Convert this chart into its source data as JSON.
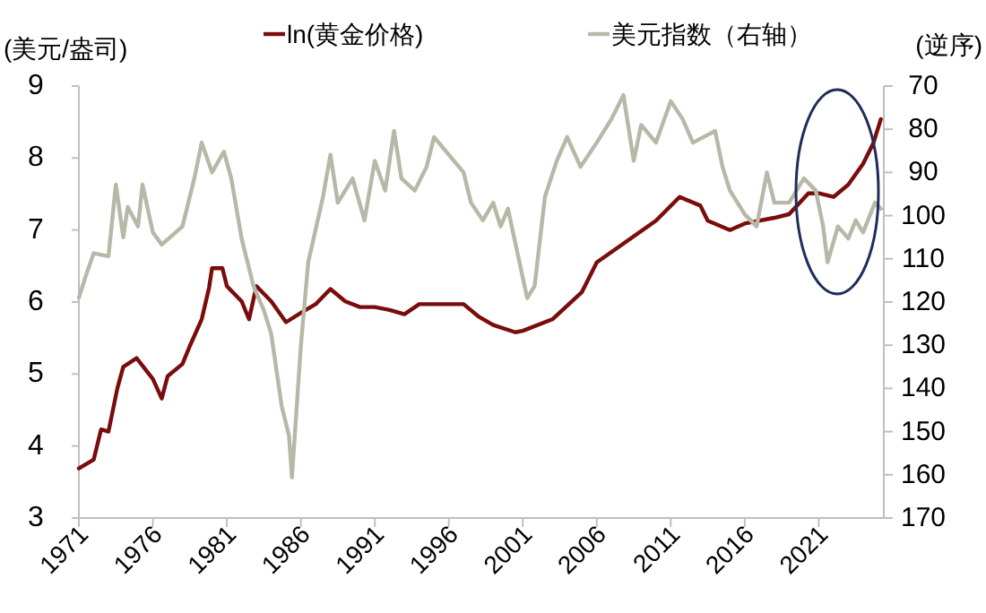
{
  "chart_data": {
    "type": "line",
    "ylabel": "(美元/盎司)",
    "y2label": "(逆序)",
    "legend": "top",
    "grid": false,
    "line_style": "solid",
    "xlim": [
      1971,
      2025.4
    ],
    "xticks": [
      1971,
      1976,
      1981,
      1986,
      1991,
      1996,
      2001,
      2006,
      2011,
      2016,
      2021
    ],
    "ylim": [
      3,
      9
    ],
    "yticks": [
      3,
      4,
      5,
      6,
      7,
      8,
      9
    ],
    "y2lim": [
      170,
      70
    ],
    "y2ticks": [
      70,
      80,
      90,
      100,
      110,
      120,
      130,
      140,
      150,
      160,
      170
    ],
    "series": [
      {
        "name": "ln(黄金价格)",
        "color": "#7a0c0c",
        "x": [
          1971,
          1972,
          1972.5,
          1973,
          1973.6,
          1974,
          1974.9,
          1976,
          1976.6,
          1977,
          1978,
          1978.5,
          1979.3,
          1979.8,
          1980,
          1980.7,
          1981,
          1982,
          1982.5,
          1983,
          1984,
          1985,
          1986,
          1987,
          1988,
          1989,
          1990,
          1991,
          1992,
          1993,
          1994,
          1996,
          1997,
          1998,
          1999,
          2000.5,
          2001,
          2003,
          2005,
          2006,
          2008,
          2010,
          2011.6,
          2013,
          2013.5,
          2015,
          2016,
          2018,
          2019,
          2020.3,
          2021,
          2022,
          2023,
          2024,
          2024.7,
          2025.2
        ],
        "values": [
          3.69,
          3.81,
          4.23,
          4.2,
          4.8,
          5.1,
          5.22,
          4.93,
          4.66,
          4.97,
          5.14,
          5.39,
          5.76,
          6.2,
          6.47,
          6.47,
          6.22,
          6.01,
          5.76,
          6.22,
          6.01,
          5.72,
          5.85,
          5.97,
          6.18,
          6.01,
          5.93,
          5.93,
          5.89,
          5.83,
          5.97,
          5.97,
          5.97,
          5.8,
          5.68,
          5.58,
          5.6,
          5.76,
          6.14,
          6.55,
          6.84,
          7.13,
          7.46,
          7.34,
          7.13,
          7.0,
          7.09,
          7.17,
          7.22,
          7.51,
          7.51,
          7.46,
          7.63,
          7.92,
          8.21,
          8.54
        ]
      },
      {
        "name": "美元指数（右轴）",
        "color": "#b8b8a8",
        "axis": "y2",
        "x": [
          1971,
          1971.5,
          1972,
          1973,
          1973.5,
          1974,
          1974.3,
          1975,
          1975.3,
          1976,
          1976.6,
          1978,
          1978.8,
          1979.3,
          1980,
          1980.8,
          1981.3,
          1982,
          1982.8,
          1983.5,
          1984,
          1984.7,
          1985.2,
          1985.4,
          1985.7,
          1986,
          1986.5,
          1987.5,
          1988,
          1988.5,
          1989.5,
          1990.3,
          1991,
          1991.7,
          1992.3,
          1992.8,
          1993.7,
          1994.5,
          1995,
          1996,
          1997,
          1997.5,
          1998.3,
          1999,
          1999.5,
          2000,
          2000.6,
          2001.3,
          2001.8,
          2002.5,
          2003.3,
          2004,
          2004.9,
          2006,
          2007,
          2007.8,
          2008.5,
          2009,
          2010,
          2011,
          2011.8,
          2012.5,
          2014,
          2014.5,
          2015,
          2016,
          2016.8,
          2017.5,
          2018,
          2019,
          2020,
          2020.8,
          2021.3,
          2021.6,
          2022.3,
          2023,
          2023.5,
          2024,
          2024.8,
          2025.2
        ],
        "values": [
          119,
          113.6,
          108.7,
          109.4,
          92.8,
          105,
          98,
          102.5,
          92.8,
          103.9,
          106.7,
          102.5,
          91.4,
          83.1,
          90,
          85.2,
          91.4,
          105.3,
          116.3,
          121.9,
          127.4,
          144,
          150.9,
          160.6,
          145.4,
          130.2,
          110.8,
          95.6,
          85.9,
          97,
          91.4,
          101.1,
          87.3,
          94.2,
          80.4,
          91.4,
          94.2,
          88.7,
          81.8,
          85.9,
          90,
          97,
          101.1,
          97,
          102.5,
          98.4,
          108,
          119.1,
          116.3,
          95.6,
          87.3,
          81.8,
          88.7,
          83.1,
          77.6,
          72.1,
          87.3,
          79,
          83.1,
          73.5,
          77.6,
          83.1,
          80.4,
          88.7,
          94.2,
          99.7,
          102.5,
          90,
          97,
          97,
          91.4,
          94.2,
          102.5,
          110.8,
          102.5,
          105.3,
          101.1,
          103.9,
          97,
          98.4
        ]
      }
    ]
  }
}
